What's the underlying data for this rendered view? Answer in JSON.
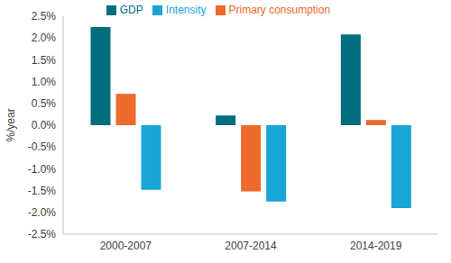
{
  "chart_data": {
    "type": "bar",
    "y_label": "%/year",
    "categories": [
      "2000-2007",
      "2007-2014",
      "2014-2019"
    ],
    "series": [
      {
        "name": "GDP",
        "color": "#006e7f",
        "values": [
          2.25,
          0.22,
          2.08
        ]
      },
      {
        "name": "Primary consumption",
        "color": "#ec6a2c",
        "values": [
          0.72,
          -1.52,
          0.12
        ]
      },
      {
        "name": "Intensity",
        "color": "#1aa5d6",
        "values": [
          -1.48,
          -1.75,
          -1.9
        ]
      }
    ],
    "ylim": [
      -2.5,
      2.5
    ],
    "yticks": [
      {
        "value": -2.5,
        "label": "-2.5%"
      },
      {
        "value": -2,
        "label": "-2.0%"
      },
      {
        "value": -1.5,
        "label": "-1.5%"
      },
      {
        "value": -1,
        "label": "-1.0%"
      },
      {
        "value": -0.5,
        "label": "-0.5%"
      },
      {
        "value": 0,
        "label": "0.0%"
      },
      {
        "value": 0.5,
        "label": "0.5%"
      },
      {
        "value": 1,
        "label": "1.0%"
      },
      {
        "value": 1.5,
        "label": "1.5%"
      },
      {
        "value": 2,
        "label": "2.0%"
      },
      {
        "value": 2.5,
        "label": "2.5%"
      }
    ],
    "grid": false,
    "legend": "top"
  }
}
